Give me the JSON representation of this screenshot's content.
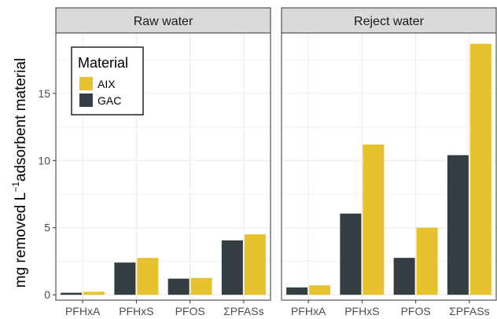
{
  "chart_data": {
    "type": "bar",
    "ylabel_prefix": "mg removed  L",
    "ylabel_sup": "−1",
    "ylabel_suffix": "adsorbent material",
    "ylim": [
      -0.4,
      19.5
    ],
    "yticks": [
      0,
      5,
      10,
      15
    ],
    "categories": [
      "PFHxA",
      "PFHxS",
      "PFOS",
      "ΣPFASs"
    ],
    "legend": {
      "title": "Material",
      "placement": "top-left",
      "entries": [
        "AIX",
        "GAC"
      ]
    },
    "colors": {
      "AIX": "#E6C22F",
      "GAC": "#333D42"
    },
    "panels": [
      {
        "title": "Raw water",
        "series": [
          {
            "name": "GAC",
            "values": [
              0.15,
              2.4,
              1.2,
              4.05
            ]
          },
          {
            "name": "AIX",
            "values": [
              0.22,
              2.75,
              1.25,
              4.5
            ]
          }
        ]
      },
      {
        "title": "Reject water",
        "series": [
          {
            "name": "GAC",
            "values": [
              0.55,
              6.05,
              2.75,
              10.4
            ]
          },
          {
            "name": "AIX",
            "values": [
              0.7,
              11.2,
              5.0,
              18.7
            ]
          }
        ]
      }
    ]
  }
}
